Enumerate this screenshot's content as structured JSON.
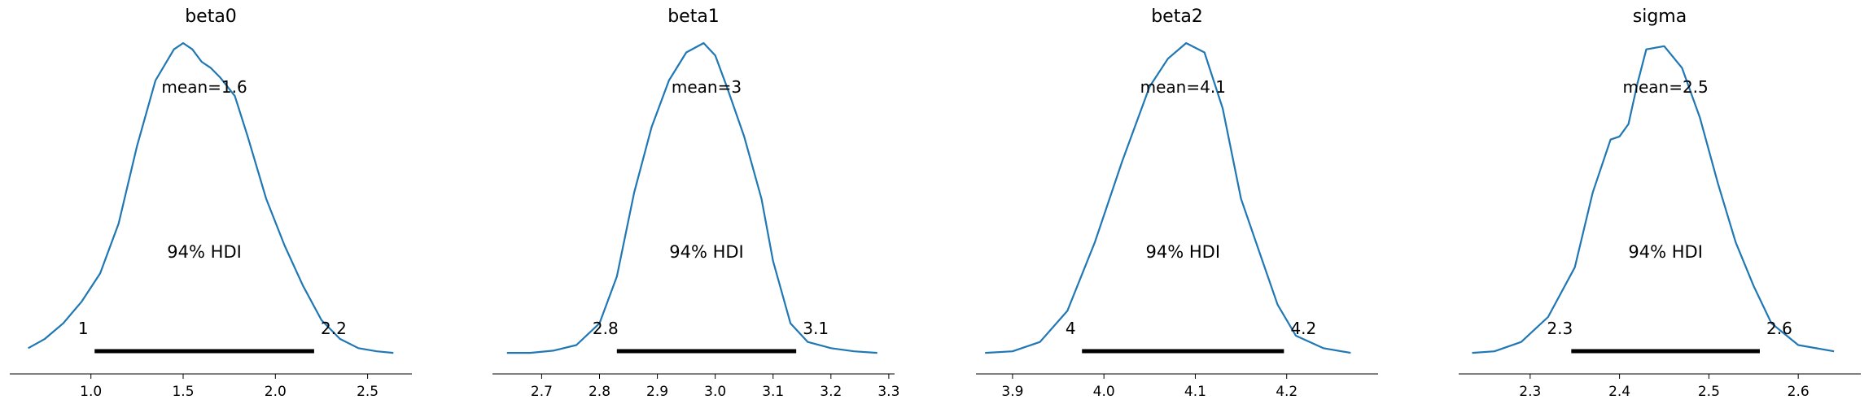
{
  "chart_data": [
    {
      "type": "area",
      "title": "beta0",
      "mean_label": "mean=1.6",
      "hdi_label": "94% HDI",
      "hdi": [
        1.02,
        2.21
      ],
      "hdi_low_label": "1",
      "hdi_high_label": "2.2",
      "xlim": [
        0.56,
        2.74
      ],
      "xticks": [
        1.0,
        1.5,
        2.0,
        2.5
      ],
      "xtick_labels": [
        "1.0",
        "1.5",
        "2.0",
        "2.5"
      ],
      "density": {
        "x": [
          0.66,
          0.75,
          0.85,
          0.95,
          1.05,
          1.15,
          1.25,
          1.35,
          1.45,
          1.5,
          1.55,
          1.6,
          1.65,
          1.7,
          1.78,
          1.85,
          1.95,
          2.05,
          2.15,
          2.25,
          2.35,
          2.45,
          2.55,
          2.64
        ],
        "y": [
          0.02,
          0.05,
          0.1,
          0.17,
          0.26,
          0.42,
          0.67,
          0.88,
          0.98,
          1.0,
          0.98,
          0.94,
          0.92,
          0.89,
          0.83,
          0.7,
          0.5,
          0.35,
          0.22,
          0.11,
          0.05,
          0.02,
          0.01,
          0.005
        ]
      }
    },
    {
      "type": "area",
      "title": "beta1",
      "mean_label": "mean=3",
      "hdi_label": "94% HDI",
      "hdi": [
        2.83,
        3.14
      ],
      "hdi_low_label": "2.8",
      "hdi_high_label": "3.1",
      "xlim": [
        2.615,
        3.31
      ],
      "xticks": [
        2.7,
        2.8,
        2.9,
        3.0,
        3.1,
        3.2,
        3.3
      ],
      "xtick_labels": [
        "2.7",
        "2.8",
        "2.9",
        "3.0",
        "3.1",
        "3.2",
        "3.3"
      ],
      "density": {
        "x": [
          2.64,
          2.68,
          2.72,
          2.76,
          2.8,
          2.83,
          2.86,
          2.89,
          2.92,
          2.95,
          2.98,
          3.0,
          3.02,
          3.05,
          3.08,
          3.1,
          3.13,
          3.16,
          3.2,
          3.24,
          3.28
        ],
        "y": [
          0.005,
          0.005,
          0.012,
          0.03,
          0.1,
          0.25,
          0.52,
          0.73,
          0.88,
          0.97,
          1.0,
          0.96,
          0.86,
          0.7,
          0.5,
          0.3,
          0.1,
          0.04,
          0.02,
          0.01,
          0.005
        ]
      }
    },
    {
      "type": "area",
      "title": "beta2",
      "mean_label": "mean=4.1",
      "hdi_label": "94% HDI",
      "hdi": [
        3.976,
        4.197
      ],
      "hdi_low_label": "4",
      "hdi_high_label": "4.2",
      "xlim": [
        3.86,
        4.3
      ],
      "xticks": [
        3.9,
        4.0,
        4.1,
        4.2
      ],
      "xtick_labels": [
        "3.9",
        "4.0",
        "4.1",
        "4.2"
      ],
      "density": {
        "x": [
          3.87,
          3.9,
          3.93,
          3.96,
          3.99,
          4.02,
          4.05,
          4.07,
          4.09,
          4.11,
          4.13,
          4.15,
          4.17,
          4.19,
          4.21,
          4.24,
          4.27
        ],
        "y": [
          0.005,
          0.01,
          0.04,
          0.14,
          0.36,
          0.62,
          0.86,
          0.95,
          1.0,
          0.97,
          0.79,
          0.5,
          0.33,
          0.16,
          0.06,
          0.02,
          0.005
        ]
      }
    },
    {
      "type": "area",
      "title": "sigma",
      "mean_label": "mean=2.5",
      "hdi_label": "94% HDI",
      "hdi": [
        2.346,
        2.557
      ],
      "hdi_low_label": "2.3",
      "hdi_high_label": "2.6",
      "xlim": [
        2.22,
        2.67
      ],
      "xticks": [
        2.3,
        2.4,
        2.5,
        2.6
      ],
      "xtick_labels": [
        "2.3",
        "2.4",
        "2.5",
        "2.6"
      ],
      "density": {
        "x": [
          2.235,
          2.26,
          2.29,
          2.32,
          2.35,
          2.37,
          2.39,
          2.4,
          2.41,
          2.42,
          2.43,
          2.45,
          2.47,
          2.49,
          2.51,
          2.53,
          2.55,
          2.57,
          2.6,
          2.64
        ],
        "y": [
          0.005,
          0.01,
          0.04,
          0.12,
          0.28,
          0.52,
          0.69,
          0.7,
          0.74,
          0.87,
          0.98,
          0.99,
          0.92,
          0.76,
          0.55,
          0.36,
          0.22,
          0.1,
          0.03,
          0.01
        ]
      }
    }
  ]
}
